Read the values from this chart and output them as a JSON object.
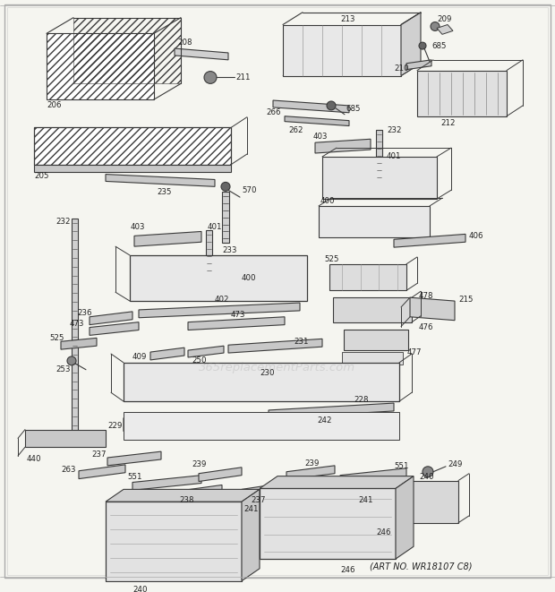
{
  "bg_color": "#f5f5f0",
  "line_color": "#3a3a3a",
  "text_color": "#222222",
  "art_no": "(ART NO. WR18107 C8)",
  "watermark": "365replacementParts.com",
  "fig_width": 6.2,
  "fig_height": 6.61,
  "dpi": 100,
  "border_color": "#cccccc",
  "label_fontsize": 6.2,
  "art_fontsize": 7.0,
  "watermark_fontsize": 9.5,
  "watermark_alpha": 0.22
}
